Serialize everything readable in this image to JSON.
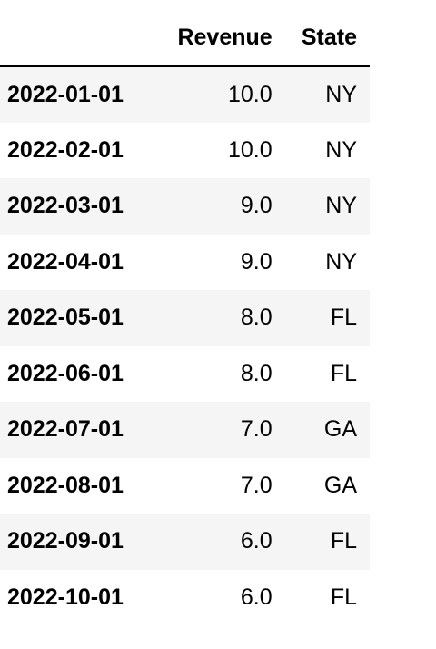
{
  "table": {
    "index_header": "",
    "columns": [
      "Revenue",
      "State"
    ],
    "rows": [
      {
        "index": "2022-01-01",
        "revenue": "10.0",
        "state": "NY"
      },
      {
        "index": "2022-02-01",
        "revenue": "10.0",
        "state": "NY"
      },
      {
        "index": "2022-03-01",
        "revenue": "9.0",
        "state": "NY"
      },
      {
        "index": "2022-04-01",
        "revenue": "9.0",
        "state": "NY"
      },
      {
        "index": "2022-05-01",
        "revenue": "8.0",
        "state": "FL"
      },
      {
        "index": "2022-06-01",
        "revenue": "8.0",
        "state": "FL"
      },
      {
        "index": "2022-07-01",
        "revenue": "7.0",
        "state": "GA"
      },
      {
        "index": "2022-08-01",
        "revenue": "7.0",
        "state": "GA"
      },
      {
        "index": "2022-09-01",
        "revenue": "6.0",
        "state": "FL"
      },
      {
        "index": "2022-10-01",
        "revenue": "6.0",
        "state": "FL"
      }
    ]
  },
  "colors": {
    "stripe": "#f5f5f5",
    "header_rule": "#000000",
    "text": "#000000"
  }
}
